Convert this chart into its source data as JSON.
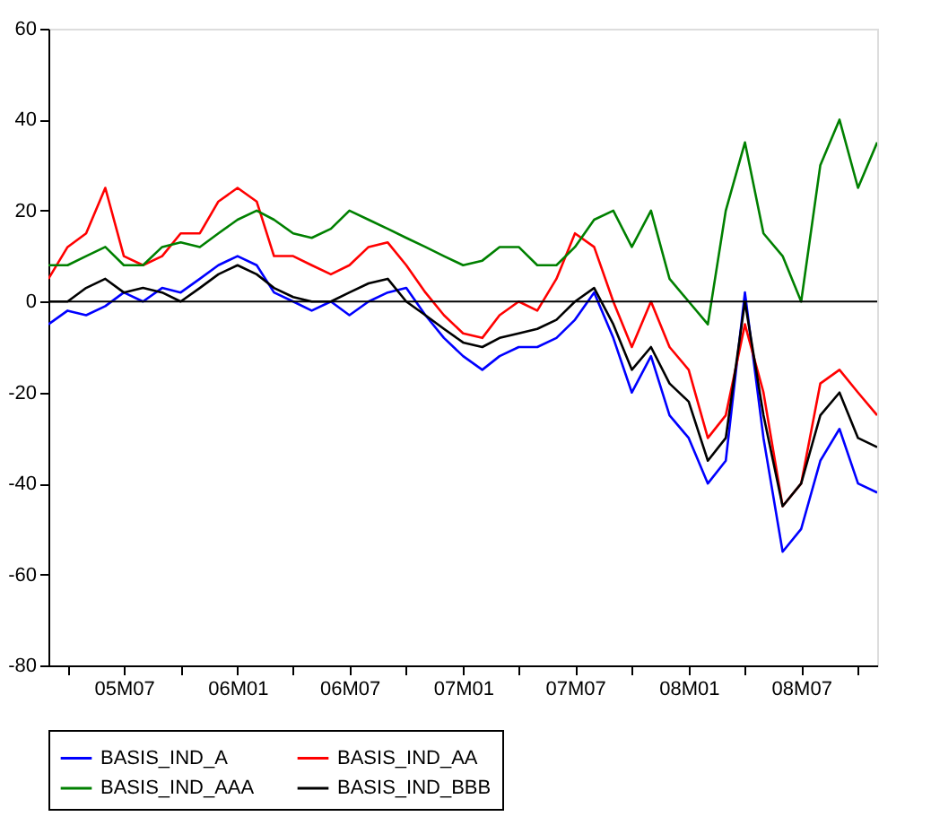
{
  "chart_data": {
    "type": "line",
    "x": [
      "2005-03",
      "2005-04",
      "2005-05",
      "2005-06",
      "2005-07",
      "2005-08",
      "2005-09",
      "2005-10",
      "2005-11",
      "2005-12",
      "2006-01",
      "2006-02",
      "2006-03",
      "2006-04",
      "2006-05",
      "2006-06",
      "2006-07",
      "2006-08",
      "2006-09",
      "2006-10",
      "2006-11",
      "2006-12",
      "2007-01",
      "2007-02",
      "2007-03",
      "2007-04",
      "2007-05",
      "2007-06",
      "2007-07",
      "2007-08",
      "2007-09",
      "2007-10",
      "2007-11",
      "2007-12",
      "2008-01",
      "2008-02",
      "2008-03",
      "2008-04",
      "2008-05",
      "2008-06",
      "2008-07",
      "2008-08",
      "2008-09",
      "2008-10",
      "2008-11"
    ],
    "series": [
      {
        "name": "BASIS_IND_A",
        "color": "#0000ff",
        "values": [
          -5,
          -2,
          -3,
          -1,
          2,
          0,
          3,
          2,
          5,
          8,
          10,
          8,
          2,
          0,
          -2,
          0,
          -3,
          0,
          2,
          3,
          -3,
          -8,
          -12,
          -15,
          -12,
          -10,
          -10,
          -8,
          -4,
          2,
          -8,
          -20,
          -12,
          -25,
          -30,
          -40,
          -35,
          2,
          -30,
          -55,
          -50,
          -35,
          -28,
          -40,
          -42
        ]
      },
      {
        "name": "BASIS_IND_AA",
        "color": "#ff0000",
        "values": [
          5,
          12,
          15,
          25,
          10,
          8,
          10,
          15,
          15,
          22,
          25,
          22,
          10,
          10,
          8,
          6,
          8,
          12,
          13,
          8,
          2,
          -3,
          -7,
          -8,
          -3,
          0,
          -2,
          5,
          15,
          12,
          0,
          -10,
          0,
          -10,
          -15,
          -30,
          -25,
          -5,
          -20,
          -45,
          -40,
          -18,
          -15,
          -20,
          -25
        ]
      },
      {
        "name": "BASIS_IND_AAA",
        "color": "#008000",
        "values": [
          8,
          8,
          10,
          12,
          8,
          8,
          12,
          13,
          12,
          15,
          18,
          20,
          18,
          15,
          14,
          16,
          20,
          18,
          16,
          14,
          12,
          10,
          8,
          9,
          12,
          12,
          8,
          8,
          12,
          18,
          20,
          12,
          20,
          5,
          0,
          -5,
          20,
          35,
          15,
          10,
          0,
          30,
          40,
          25,
          35
        ]
      },
      {
        "name": "BASIS_IND_BBB",
        "color": "#000000",
        "values": [
          0,
          0,
          3,
          5,
          2,
          3,
          2,
          0,
          3,
          6,
          8,
          6,
          3,
          1,
          0,
          0,
          2,
          4,
          5,
          0,
          -3,
          -6,
          -9,
          -10,
          -8,
          -7,
          -6,
          -4,
          0,
          3,
          -5,
          -15,
          -10,
          -18,
          -22,
          -35,
          -30,
          0,
          -25,
          -45,
          -40,
          -25,
          -20,
          -30,
          -32
        ]
      }
    ],
    "xlim": [
      "2005-03-01",
      "2008-11-01"
    ],
    "xticks": [
      {
        "value": "2005-04-01",
        "label": null
      },
      {
        "value": "2005-07-01",
        "label": "05M07"
      },
      {
        "value": "2005-10-01",
        "label": null
      },
      {
        "value": "2006-01-01",
        "label": "06M01"
      },
      {
        "value": "2006-04-01",
        "label": null
      },
      {
        "value": "2006-07-01",
        "label": "06M07"
      },
      {
        "value": "2006-10-01",
        "label": null
      },
      {
        "value": "2007-01-01",
        "label": "07M01"
      },
      {
        "value": "2007-04-01",
        "label": null
      },
      {
        "value": "2007-07-01",
        "label": "07M07"
      },
      {
        "value": "2007-10-01",
        "label": null
      },
      {
        "value": "2008-01-01",
        "label": "08M01"
      },
      {
        "value": "2008-04-01",
        "label": null
      },
      {
        "value": "2008-07-01",
        "label": "08M07"
      },
      {
        "value": "2008-10-01",
        "label": null
      }
    ],
    "ylim": [
      -80,
      60
    ],
    "yticks": [
      -80,
      -60,
      -40,
      -20,
      0,
      20,
      40,
      60
    ],
    "ref_lines": [
      {
        "axis": "y",
        "value": 0,
        "label": null,
        "color": "#000000"
      }
    ],
    "grid": false,
    "legend": "bottom",
    "line_style": "solid",
    "marker": "none"
  }
}
